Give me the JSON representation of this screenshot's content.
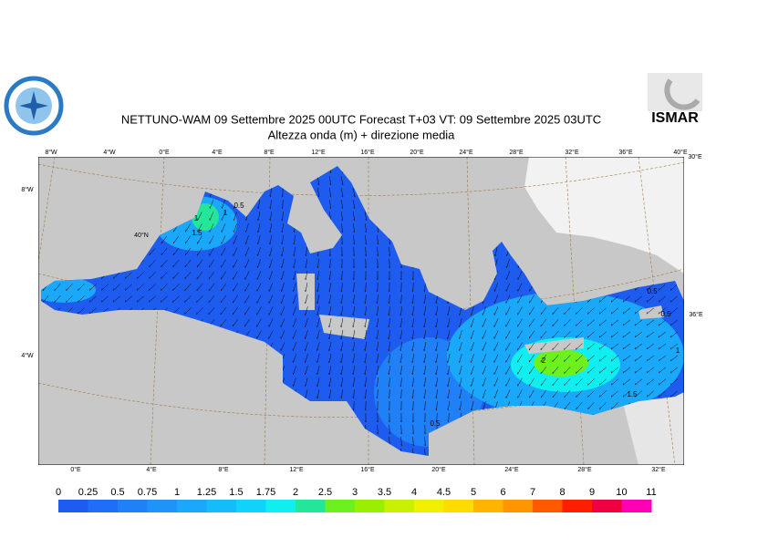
{
  "header": {
    "title": "NETTUNO-WAM  09 Settembre 2025 00UTC Forecast T+03 VT: 09 Settembre 2025 03UTC",
    "subtitle": "Altezza onda (m) + direzione media",
    "logo_text": "ISMAR"
  },
  "map": {
    "top_labels": [
      "8°W",
      "4°W",
      "0°E",
      "4°E",
      "8°E",
      "12°E",
      "16°E",
      "20°E",
      "24°E",
      "28°E",
      "32°E",
      "36°E",
      "40°E"
    ],
    "bottom_labels": [
      "0°E",
      "4°E",
      "8°E",
      "12°E",
      "16°E",
      "20°E",
      "24°E",
      "28°E",
      "32°E"
    ],
    "left_labels": [
      "8°W",
      "40°N",
      "4°W"
    ],
    "right_labels": [
      "30°E",
      "36°E"
    ],
    "contour_labels": [
      "0.5",
      "1",
      "1.5",
      "1",
      "0.5",
      "2",
      "1.5",
      "0.5",
      "0.5",
      "1"
    ]
  },
  "legend": {
    "levels": [
      0,
      0.25,
      0.5,
      0.75,
      1,
      1.25,
      1.5,
      1.75,
      2,
      2.5,
      3,
      3.5,
      4,
      4.5,
      5,
      6,
      7,
      8,
      9,
      10,
      11
    ],
    "colors": [
      "#1e5cf0",
      "#1f6ef5",
      "#2080f8",
      "#1e94fa",
      "#1aa8fa",
      "#14bcfa",
      "#10d2fa",
      "#10eef0",
      "#24e69a",
      "#6cf01e",
      "#98f000",
      "#c8f000",
      "#f0f000",
      "#ffdc00",
      "#ffb400",
      "#ff9600",
      "#ff5a00",
      "#ff1e00",
      "#f00040",
      "#ff00b4"
    ]
  }
}
